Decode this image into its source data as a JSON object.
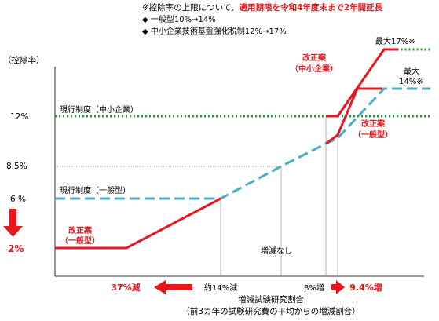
{
  "header": {
    "note_prefix": "※控除率の上限について、",
    "note_highlight": "適用期限を令和4年度末まで2年間延長",
    "bullets": [
      "◆ 一般型10%→14%",
      "◆ 中小企業技術基盤強化税制12%→17%"
    ]
  },
  "chart_data": {
    "type": "line",
    "ylabel": "（控除率）",
    "xlabel": "増減試験研究割合",
    "xlabel_sub": "（前3カ年の試験研究費の平均からの増減割合）",
    "y_ticks": [
      "12%",
      "8.5%",
      "6 %",
      "2%"
    ],
    "x_annotations": [
      "37%減",
      "約14%減",
      "増減なし",
      "8%増",
      "9.4%増"
    ],
    "series": [
      {
        "name": "現行制度（中小企業）",
        "x": [
          -40,
          8,
          16
        ],
        "y": [
          12,
          12,
          12
        ]
      },
      {
        "name": "現行制度（一般型）",
        "x": [
          -40,
          -14,
          0,
          8,
          16
        ],
        "y": [
          6,
          6,
          8.5,
          10,
          10
        ]
      },
      {
        "name": "改正案（中小企業）",
        "x": [
          8,
          9.4,
          12.5,
          16
        ],
        "y": [
          12,
          12,
          17,
          17
        ]
      },
      {
        "name": "改正案（一般型）",
        "x": [
          -40,
          -37,
          -14,
          0,
          8,
          9.4,
          12.5,
          16
        ],
        "y": [
          2,
          2,
          6,
          8.5,
          10,
          10.5,
          14,
          14
        ]
      }
    ],
    "labels": {
      "kaisei_chusho": [
        "改正案",
        "（中小企業）"
      ],
      "kaisei_ippan_right": [
        "改正案",
        "（一般型）"
      ],
      "kaisei_ippan_left": [
        "改正案",
        "（一般型）"
      ],
      "max17": "最大17%※",
      "max14": [
        "最大",
        "14%※"
      ],
      "current_chusho": "現行制度（中小企業）",
      "current_ippan": "現行制度（一般型）"
    },
    "colors": {
      "red": "#e8171e",
      "green": "#1aa130",
      "blue": "#4bacc6",
      "axis": "#333333"
    }
  }
}
